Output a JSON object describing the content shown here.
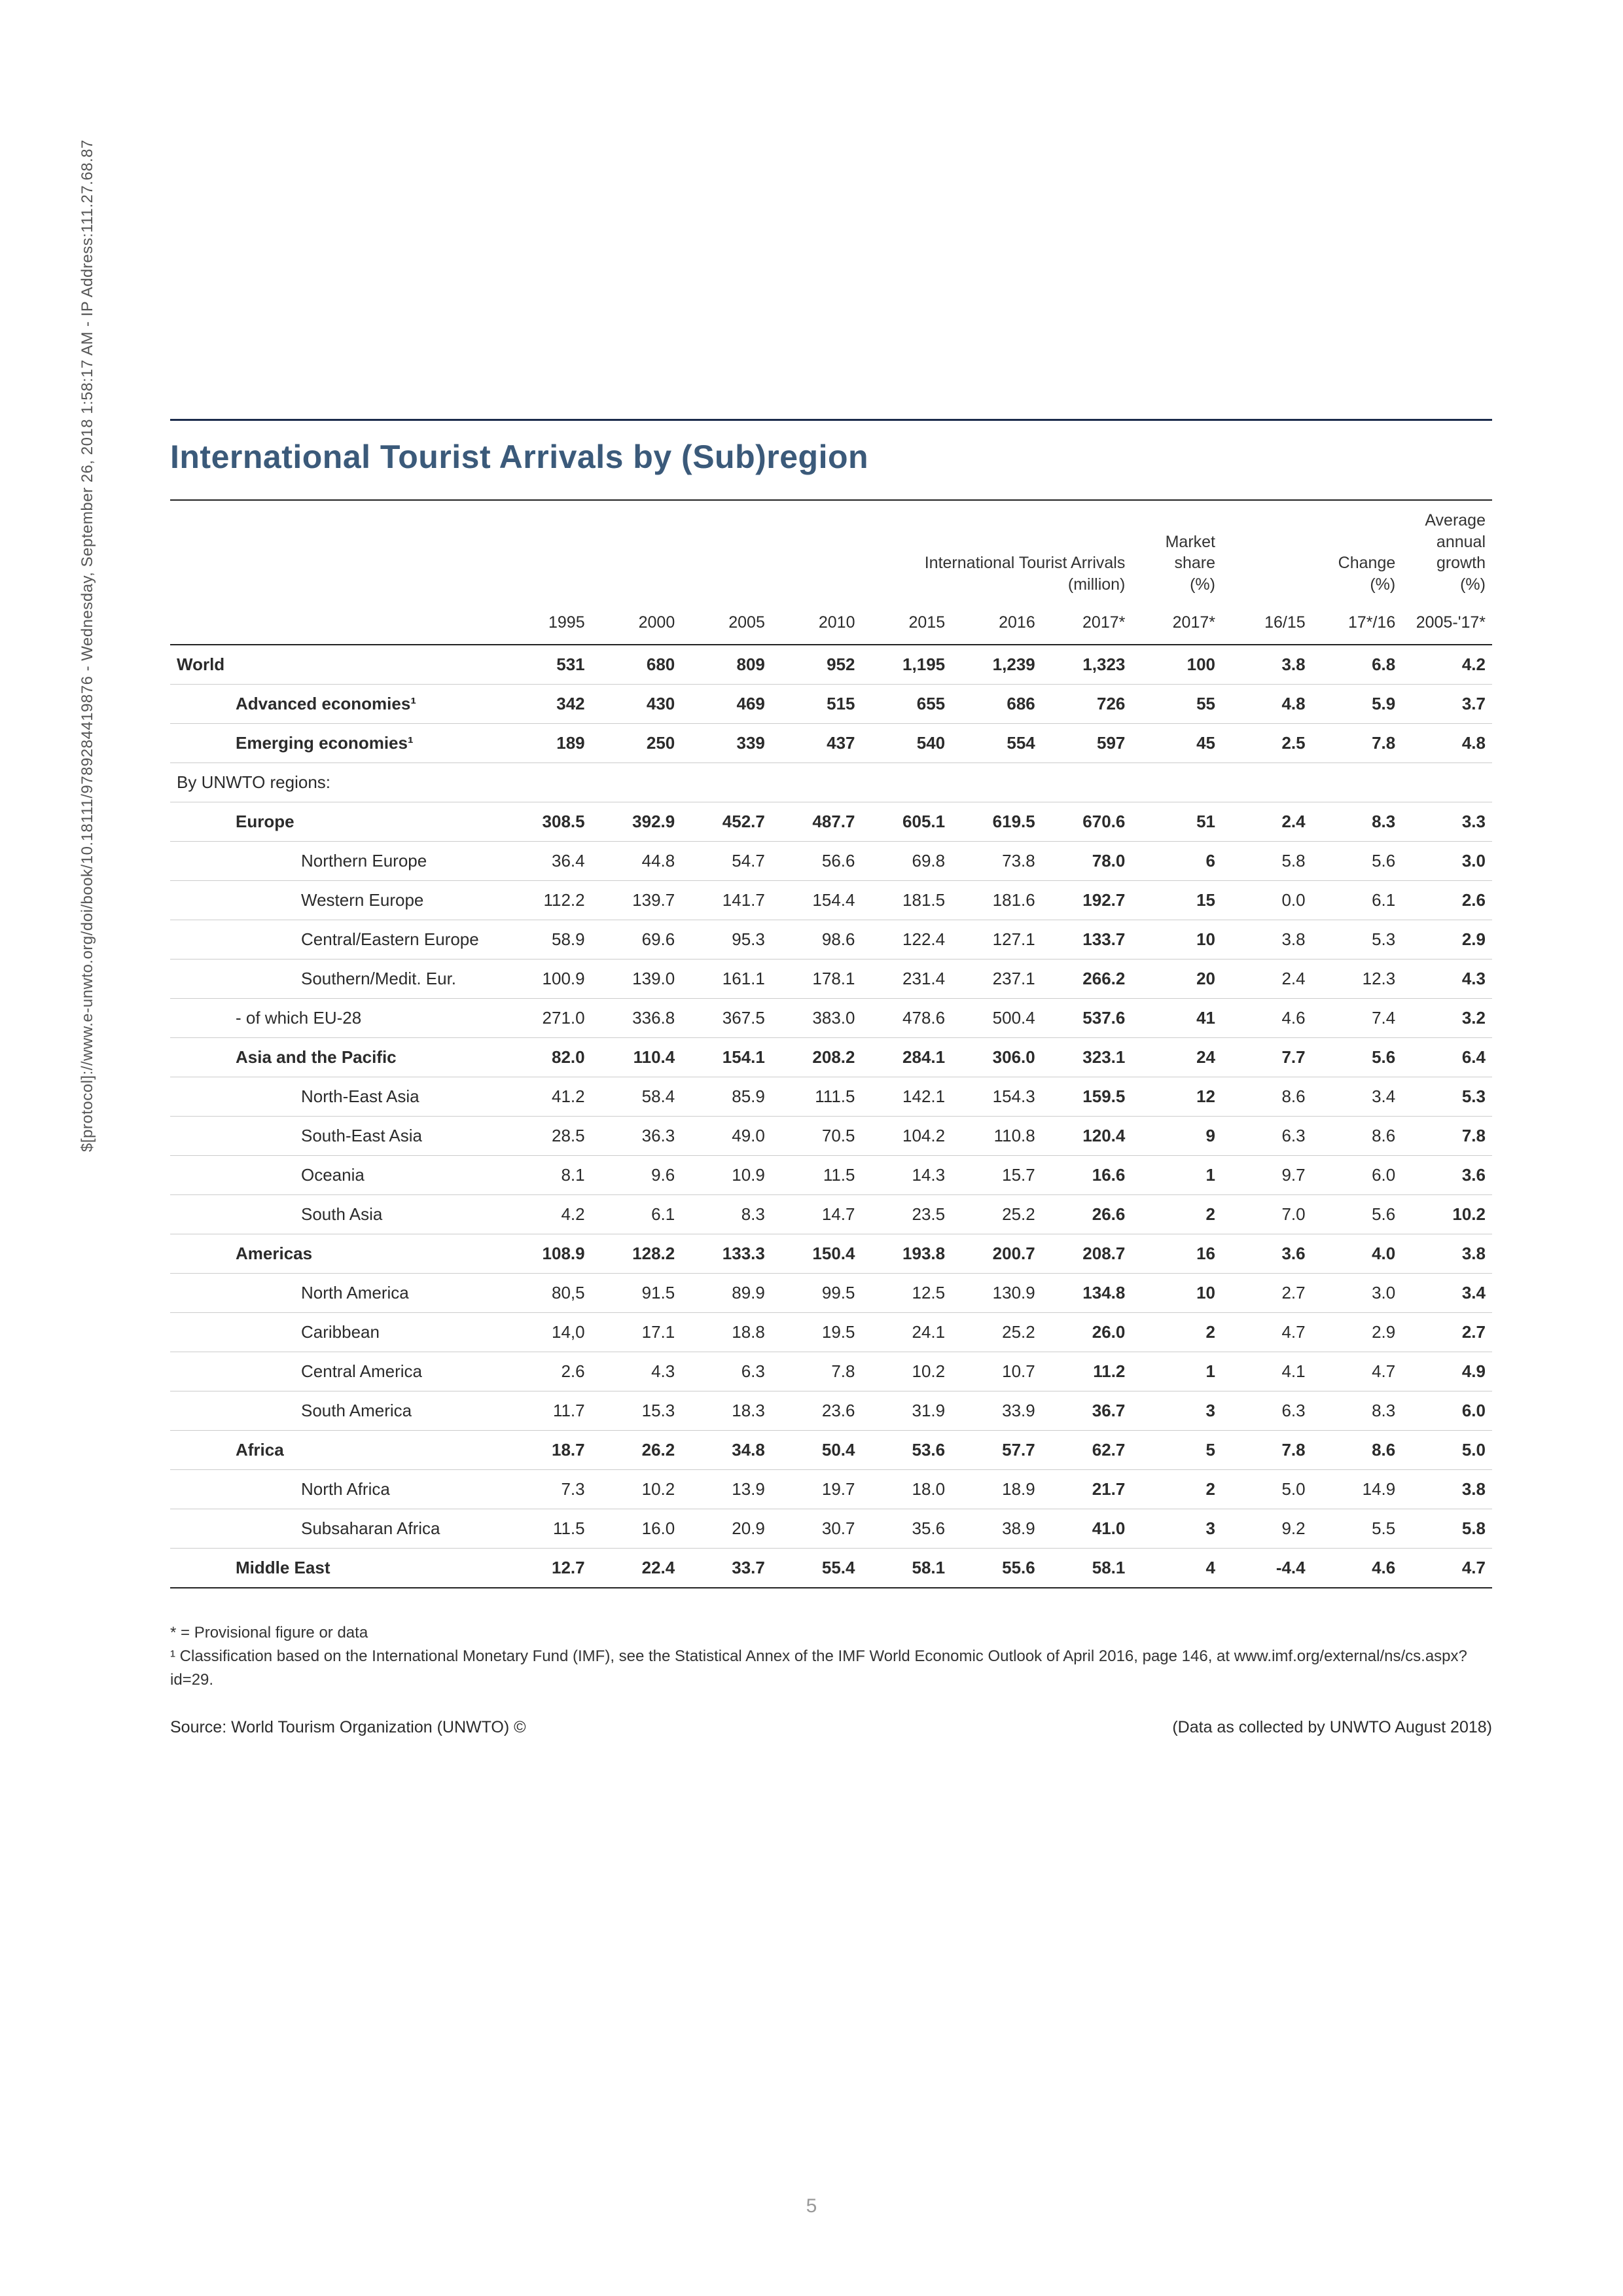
{
  "sidebar_text": "$[protocol]://www.e-unwto.org/doi/book/10.18111/9789284419876 - Wednesday, September 26, 2018 1:58:17 AM - IP Address:111.27.68.87",
  "title": "International Tourist Arrivals by (Sub)region",
  "group_headers": {
    "arrivals": "International Tourist Arrivals\n(million)",
    "market_share": "Market\nshare\n(%)",
    "change": "Change\n(%)",
    "avg_growth": "Average\nannual\ngrowth (%)"
  },
  "year_columns": [
    "1995",
    "2000",
    "2005",
    "2010",
    "2015",
    "2016",
    "2017*",
    "2017*",
    "16/15",
    "17*/16",
    "2005-'17*"
  ],
  "rows": [
    {
      "label": "World",
      "indent": 0,
      "bold": true,
      "style": "section",
      "vals": [
        "531",
        "680",
        "809",
        "952",
        "1,195",
        "1,239",
        "1,323",
        "100",
        "3.8",
        "6.8",
        "4.2"
      ]
    },
    {
      "label": "Advanced economies¹",
      "indent": 1,
      "bold": true,
      "style": "sub",
      "vals": [
        "342",
        "430",
        "469",
        "515",
        "655",
        "686",
        "726",
        "55",
        "4.8",
        "5.9",
        "3.7"
      ]
    },
    {
      "label": "Emerging economies¹",
      "indent": 1,
      "bold": true,
      "style": "sub",
      "vals": [
        "189",
        "250",
        "339",
        "437",
        "540",
        "554",
        "597",
        "45",
        "2.5",
        "7.8",
        "4.8"
      ]
    },
    {
      "label": "By UNWTO regions:",
      "indent": 0,
      "bold": false,
      "style": "sub",
      "vals": [
        "",
        "",
        "",
        "",
        "",
        "",
        "",
        "",
        "",
        "",
        ""
      ]
    },
    {
      "label": "Europe",
      "indent": 1,
      "bold": true,
      "style": "sub",
      "vals": [
        "308.5",
        "392.9",
        "452.7",
        "487.7",
        "605.1",
        "619.5",
        "670.6",
        "51",
        "2.4",
        "8.3",
        "3.3"
      ]
    },
    {
      "label": "Northern Europe",
      "indent": 2,
      "bold": false,
      "style": "sub",
      "vals": [
        "36.4",
        "44.8",
        "54.7",
        "56.6",
        "69.8",
        "73.8",
        "78.0",
        "6",
        "5.8",
        "5.6",
        "3.0"
      ]
    },
    {
      "label": "Western Europe",
      "indent": 2,
      "bold": false,
      "style": "sub",
      "vals": [
        "112.2",
        "139.7",
        "141.7",
        "154.4",
        "181.5",
        "181.6",
        "192.7",
        "15",
        "0.0",
        "6.1",
        "2.6"
      ]
    },
    {
      "label": "Central/Eastern Europe",
      "indent": 2,
      "bold": false,
      "style": "sub",
      "vals": [
        "58.9",
        "69.6",
        "95.3",
        "98.6",
        "122.4",
        "127.1",
        "133.7",
        "10",
        "3.8",
        "5.3",
        "2.9"
      ]
    },
    {
      "label": "Southern/Medit. Eur.",
      "indent": 2,
      "bold": false,
      "style": "sub",
      "vals": [
        "100.9",
        "139.0",
        "161.1",
        "178.1",
        "231.4",
        "237.1",
        "266.2",
        "20",
        "2.4",
        "12.3",
        "4.3"
      ]
    },
    {
      "label": "- of which EU-28",
      "indent": 1,
      "bold": false,
      "style": "sub",
      "vals": [
        "271.0",
        "336.8",
        "367.5",
        "383.0",
        "478.6",
        "500.4",
        "537.6",
        "41",
        "4.6",
        "7.4",
        "3.2"
      ]
    },
    {
      "label": "Asia and the Pacific",
      "indent": 1,
      "bold": true,
      "style": "sub",
      "vals": [
        "82.0",
        "110.4",
        "154.1",
        "208.2",
        "284.1",
        "306.0",
        "323.1",
        "24",
        "7.7",
        "5.6",
        "6.4"
      ]
    },
    {
      "label": "North-East Asia",
      "indent": 2,
      "bold": false,
      "style": "sub",
      "vals": [
        "41.2",
        "58.4",
        "85.9",
        "111.5",
        "142.1",
        "154.3",
        "159.5",
        "12",
        "8.6",
        "3.4",
        "5.3"
      ]
    },
    {
      "label": "South-East Asia",
      "indent": 2,
      "bold": false,
      "style": "sub",
      "vals": [
        "28.5",
        "36.3",
        "49.0",
        "70.5",
        "104.2",
        "110.8",
        "120.4",
        "9",
        "6.3",
        "8.6",
        "7.8"
      ]
    },
    {
      "label": "Oceania",
      "indent": 2,
      "bold": false,
      "style": "sub",
      "vals": [
        "8.1",
        "9.6",
        "10.9",
        "11.5",
        "14.3",
        "15.7",
        "16.6",
        "1",
        "9.7",
        "6.0",
        "3.6"
      ]
    },
    {
      "label": "South Asia",
      "indent": 2,
      "bold": false,
      "style": "sub",
      "vals": [
        "4.2",
        "6.1",
        "8.3",
        "14.7",
        "23.5",
        "25.2",
        "26.6",
        "2",
        "7.0",
        "5.6",
        "10.2"
      ]
    },
    {
      "label": "Americas",
      "indent": 1,
      "bold": true,
      "style": "sub",
      "vals": [
        "108.9",
        "128.2",
        "133.3",
        "150.4",
        "193.8",
        "200.7",
        "208.7",
        "16",
        "3.6",
        "4.0",
        "3.8"
      ]
    },
    {
      "label": "North America",
      "indent": 2,
      "bold": false,
      "style": "sub",
      "vals": [
        "80,5",
        "91.5",
        "89.9",
        "99.5",
        "12.5",
        "130.9",
        "134.8",
        "10",
        "2.7",
        "3.0",
        "3.4"
      ]
    },
    {
      "label": "Caribbean",
      "indent": 2,
      "bold": false,
      "style": "sub",
      "vals": [
        "14,0",
        "17.1",
        "18.8",
        "19.5",
        "24.1",
        "25.2",
        "26.0",
        "2",
        "4.7",
        "2.9",
        "2.7"
      ]
    },
    {
      "label": "Central America",
      "indent": 2,
      "bold": false,
      "style": "sub",
      "vals": [
        "2.6",
        "4.3",
        "6.3",
        "7.8",
        "10.2",
        "10.7",
        "11.2",
        "1",
        "4.1",
        "4.7",
        "4.9"
      ]
    },
    {
      "label": "South America",
      "indent": 2,
      "bold": false,
      "style": "sub",
      "vals": [
        "11.7",
        "15.3",
        "18.3",
        "23.6",
        "31.9",
        "33.9",
        "36.7",
        "3",
        "6.3",
        "8.3",
        "6.0"
      ]
    },
    {
      "label": "Africa",
      "indent": 1,
      "bold": true,
      "style": "sub",
      "vals": [
        "18.7",
        "26.2",
        "34.8",
        "50.4",
        "53.6",
        "57.7",
        "62.7",
        "5",
        "7.8",
        "8.6",
        "5.0"
      ]
    },
    {
      "label": "North Africa",
      "indent": 2,
      "bold": false,
      "style": "sub",
      "vals": [
        "7.3",
        "10.2",
        "13.9",
        "19.7",
        "18.0",
        "18.9",
        "21.7",
        "2",
        "5.0",
        "14.9",
        "3.8"
      ]
    },
    {
      "label": "Subsaharan Africa",
      "indent": 2,
      "bold": false,
      "style": "sub",
      "vals": [
        "11.5",
        "16.0",
        "20.9",
        "30.7",
        "35.6",
        "38.9",
        "41.0",
        "3",
        "9.2",
        "5.5",
        "5.8"
      ]
    },
    {
      "label": "Middle East",
      "indent": 1,
      "bold": true,
      "style": "endline sub",
      "vals": [
        "12.7",
        "22.4",
        "33.7",
        "55.4",
        "58.1",
        "55.6",
        "58.1",
        "4",
        "-4.4",
        "4.6",
        "4.7"
      ]
    }
  ],
  "footnotes": {
    "star": "* =  Provisional figure or data",
    "one": "¹ Classification based on the International Monetary Fund (IMF), see the Statistical Annex of the IMF World Economic Outlook of April 2016, page 146, at www.imf.org/external/ns/cs.aspx?id=29."
  },
  "source_left": "Source: World Tourism Organization (UNWTO) ©",
  "source_right": "(Data as collected by UNWTO August 2018)",
  "page_number": "5",
  "col_widths": {
    "label_pct": 25,
    "num_pct": 6.8
  },
  "colors": {
    "title_color": "#3b5a7a",
    "rule_dark": "#222222",
    "rule_light": "#cccccc",
    "text": "#2b2b2b",
    "pagenum": "#999999"
  }
}
